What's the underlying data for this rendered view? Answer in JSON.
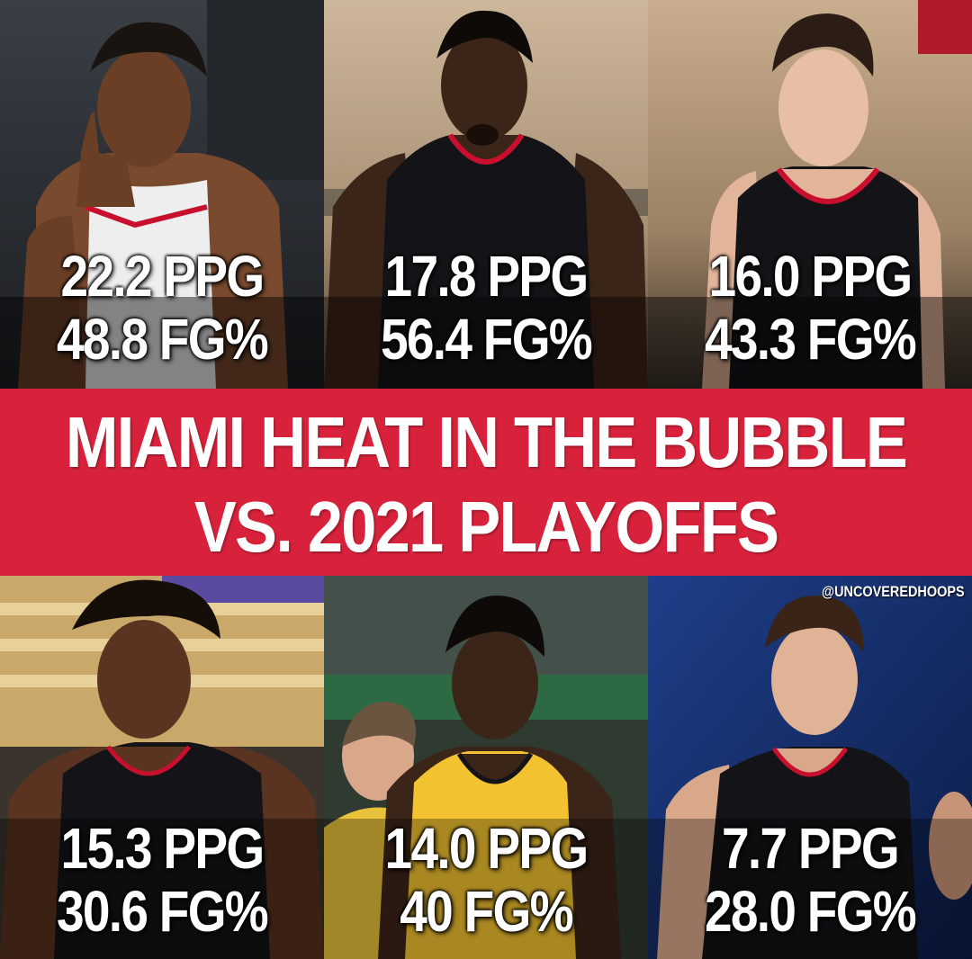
{
  "title": {
    "line1": "MIAMI HEAT IN THE BUBBLE",
    "line2": "VS. 2021 PLAYOFFS"
  },
  "handle": "@UNCOVEREDHOOPS",
  "colors": {
    "banner": "#d8223b",
    "text": "#ffffff",
    "heat_black_jersey": "#141418",
    "heat_gold_jersey": "#f2c230"
  },
  "bubble": [
    {
      "ppg": "22.2 PPG",
      "fg": "48.8 FG%"
    },
    {
      "ppg": "17.8 PPG",
      "fg": "56.4 FG%"
    },
    {
      "ppg": "16.0 PPG",
      "fg": "43.3 FG%"
    }
  ],
  "playoffs_2021": [
    {
      "ppg": "15.3 PPG",
      "fg": "30.6 FG%"
    },
    {
      "ppg": "14.0 PPG",
      "fg": "40 FG%"
    },
    {
      "ppg": "7.7 PPG",
      "fg": "28.0 FG%"
    }
  ]
}
